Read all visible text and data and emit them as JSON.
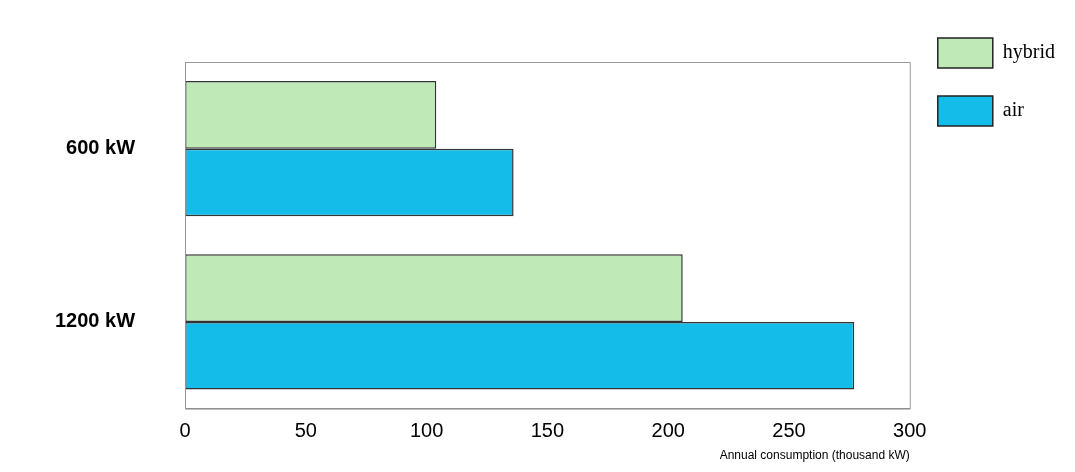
{
  "chart_data": {
    "type": "bar",
    "orientation": "horizontal",
    "xlabel": "Annual consumption (thousand kW)",
    "categories": [
      "600 kW",
      "1200 kW"
    ],
    "series": [
      {
        "name": "hybrid",
        "color": "#bfeab8",
        "values": [
          104,
          206
        ]
      },
      {
        "name": "air",
        "color": "#14bde9",
        "values": [
          136,
          277
        ]
      }
    ],
    "xlim": [
      0,
      300
    ],
    "xticks": [
      0,
      50,
      100,
      150,
      200,
      250,
      300
    ],
    "grid": false,
    "legend": "right"
  }
}
